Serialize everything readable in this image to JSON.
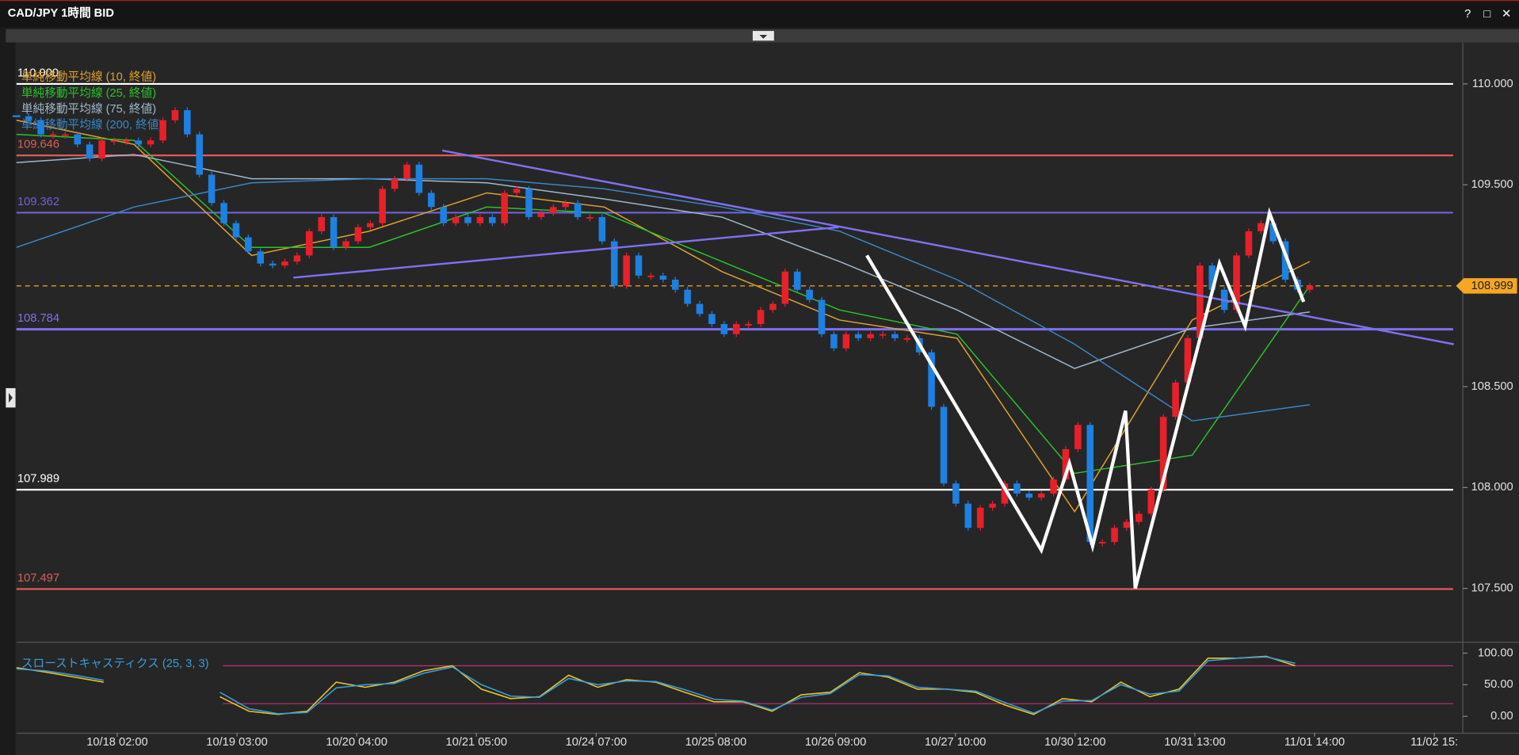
{
  "window": {
    "title": "CAD/JPY 1時間 BID",
    "controls": [
      "?",
      "□",
      "✕"
    ]
  },
  "chart_data": [
    {
      "type": "candlestick",
      "ylim": [
        107.25,
        110.2
      ],
      "yticks": [
        {
          "value": 110,
          "label": "110.000"
        },
        {
          "value": 109.5,
          "label": "109.500"
        },
        {
          "value": 109,
          "label": "109.000"
        },
        {
          "value": 108.5,
          "label": "108.500"
        },
        {
          "value": 108,
          "label": "108.000"
        },
        {
          "value": 107.5,
          "label": "107.500"
        }
      ],
      "xticks": [
        "10/18 02:00",
        "10/19 03:00",
        "10/20 04:00",
        "10/21 05:00",
        "10/24 07:00",
        "10/25 08:00",
        "10/26 09:00",
        "10/27 10:00",
        "10/30 12:00",
        "10/31 13:00",
        "11/01 14:00",
        "11/02 15:"
      ],
      "up_color": "#e8202a",
      "down_color": "#1e80e0",
      "close": [
        109.84,
        109.82,
        109.75,
        109.75,
        109.75,
        109.7,
        109.63,
        109.72,
        109.72,
        109.72,
        109.7,
        109.72,
        109.82,
        109.87,
        109.75,
        109.55,
        109.41,
        109.31,
        109.24,
        109.17,
        109.11,
        109.1,
        109.12,
        109.15,
        109.27,
        109.34,
        109.19,
        109.22,
        109.29,
        109.31,
        109.48,
        109.53,
        109.6,
        109.46,
        109.39,
        109.31,
        109.34,
        109.31,
        109.34,
        109.31,
        109.46,
        109.48,
        109.34,
        109.36,
        109.39,
        109.41,
        109.34,
        109.34,
        109.22,
        109.0,
        109.15,
        109.05,
        109.05,
        109.03,
        108.98,
        108.91,
        108.86,
        108.81,
        108.76,
        108.81,
        108.81,
        108.88,
        108.91,
        109.07,
        108.98,
        108.93,
        108.76,
        108.69,
        108.76,
        108.74,
        108.76,
        108.76,
        108.74,
        108.74,
        108.67,
        108.4,
        108.02,
        107.92,
        107.8,
        107.9,
        107.92,
        108.02,
        107.97,
        107.95,
        107.97,
        108.04,
        108.19,
        108.31,
        107.73,
        107.73,
        107.8,
        107.83,
        107.87,
        107.99,
        108.35,
        108.52,
        108.74,
        109.1,
        108.98,
        108.88,
        109.15,
        109.27,
        109.31,
        109.22,
        109.03,
        108.98,
        109.0
      ],
      "series": [
        {
          "name": "単純移動平均線 (10, 終値)",
          "color": "#e0a030",
          "values": [
            109.82,
            109.7,
            109.15,
            109.27,
            109.46,
            109.39,
            109.07,
            108.83,
            108.74,
            107.88,
            108.83,
            109.12
          ]
        },
        {
          "name": "単純移動平均線 (25, 終値)",
          "color": "#2cc12c",
          "values": [
            109.75,
            109.72,
            109.19,
            109.19,
            109.39,
            109.36,
            109.12,
            108.88,
            108.76,
            108.07,
            108.16,
            109.0
          ]
        },
        {
          "name": "単純移動平均線 (75, 終値)",
          "color": "#9fb8cc",
          "values": [
            109.61,
            109.65,
            109.53,
            109.53,
            109.51,
            109.43,
            109.34,
            109.12,
            108.88,
            108.59,
            108.79,
            108.87
          ]
        },
        {
          "name": "単純移動平均線 (200, 終値)",
          "color": "#3a86c8",
          "values": [
            109.19,
            109.39,
            109.51,
            109.53,
            109.53,
            109.48,
            109.39,
            109.27,
            109.03,
            108.71,
            108.33,
            108.41
          ]
        }
      ],
      "levels": [
        {
          "value": 110,
          "label": "110.000",
          "color": "#ffffff"
        },
        {
          "value": 109.646,
          "color": "#e25a5a"
        },
        {
          "value": 109.362,
          "color": "#6f62d8"
        },
        {
          "value": 108.784,
          "color": "#7f70f0"
        },
        {
          "value": 107.989,
          "color": "#ffffff"
        },
        {
          "value": 107.497,
          "color": "#e25a5a"
        }
      ],
      "current_price": {
        "value": 108.999,
        "color": "#f5a623"
      },
      "zigzag": {
        "color": "#ffffff",
        "x": [
          69.7,
          84.0,
          86.3,
          88.2,
          90.9,
          91.7,
          98.6,
          100.7,
          102.7,
          105.5
        ],
        "values": [
          109.15,
          107.69,
          108.12,
          107.71,
          108.38,
          107.5,
          109.11,
          108.8,
          109.36,
          108.92
        ]
      },
      "trendlines": [
        {
          "color": "#7f70f0",
          "x": [
            34.9,
            117.8
          ],
          "values": [
            109.67,
            108.71
          ]
        },
        {
          "color": "#7f70f0",
          "x": [
            22.7,
            67.4
          ],
          "values": [
            109.04,
            109.29
          ]
        }
      ]
    },
    {
      "type": "line",
      "title": "スローストキャスティクス (25, 3, 3)",
      "ylim": [
        -23,
        115
      ],
      "yticks": [
        {
          "value": 100,
          "label": "100.00"
        },
        {
          "value": 50,
          "label": "50.00"
        },
        {
          "value": 0,
          "label": "0.00"
        }
      ],
      "levels": [
        80,
        20
      ],
      "level_color": "#c0307a",
      "series": [
        {
          "color": "#e8c42a",
          "values": [
            77,
            70,
            62,
            54,
            null,
            null,
            null,
            31,
            8,
            3,
            8,
            54,
            46,
            54,
            72,
            80,
            43,
            28,
            31,
            65,
            46,
            58,
            54,
            38,
            23,
            23,
            8,
            34,
            38,
            69,
            62,
            43,
            43,
            38,
            18,
            3,
            28,
            23,
            54,
            31,
            43,
            92,
            92,
            95,
            80
          ]
        },
        {
          "color": "#3a9bd9",
          "values": [
            75,
            72,
            65,
            57,
            null,
            null,
            null,
            38,
            12,
            4,
            6,
            45,
            50,
            52,
            68,
            78,
            50,
            32,
            30,
            60,
            50,
            56,
            55,
            42,
            27,
            24,
            10,
            30,
            36,
            66,
            64,
            46,
            43,
            40,
            22,
            5,
            24,
            25,
            50,
            35,
            40,
            88,
            92,
            94,
            84
          ]
        }
      ]
    }
  ]
}
